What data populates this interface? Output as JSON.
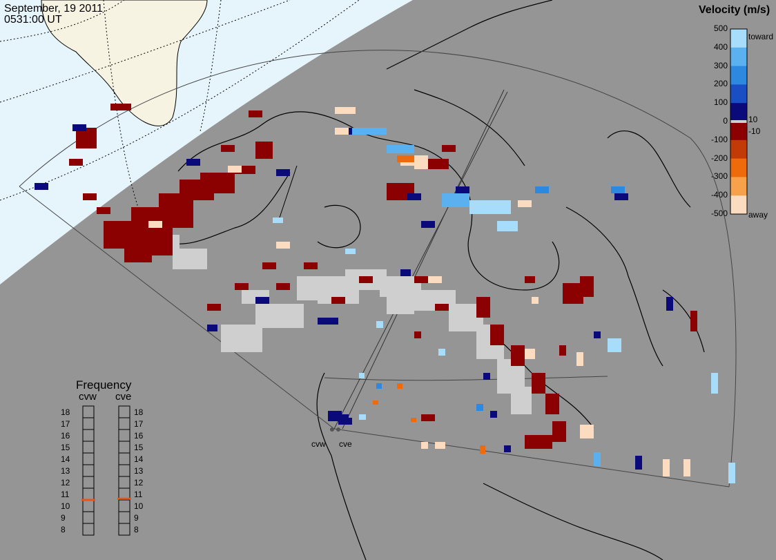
{
  "header": {
    "date": "September, 19 2011",
    "time": "0531:00 UT"
  },
  "velocity_scale": {
    "title": "Velocity (m/s)",
    "ticks": [
      "500",
      "400",
      "300",
      "200",
      "100",
      "0",
      "-100",
      "-200",
      "-300",
      "-400",
      "-500"
    ],
    "inner_ticks": [
      "10",
      "-10"
    ],
    "toward_label": "toward",
    "away_label": "away",
    "colors": [
      "#fbdcc0",
      "#f7a24b",
      "#ef6a0b",
      "#c23a06",
      "#8b0000",
      "#0a0a7a",
      "#1a4ec4",
      "#2d88e0",
      "#5bb1f0",
      "#a8dcfb"
    ]
  },
  "frequency_panel": {
    "title": "Frequency",
    "left_radar": "cvw",
    "right_radar": "cve",
    "levels": [
      "18",
      "17",
      "16",
      "15",
      "14",
      "13",
      "12",
      "11",
      "10",
      "9",
      "8"
    ],
    "cvw_mhz": 10.5,
    "cve_mhz": 10.6,
    "marker_color": "#e8541a"
  },
  "radar_sites": [
    {
      "name": "cvw"
    },
    {
      "name": "cve"
    }
  ],
  "map_colors": {
    "night": "#959595",
    "day_ocean": "#e6f4fc",
    "day_land": "#f6f3e2",
    "scatter_gray": "#cfcfcf"
  }
}
